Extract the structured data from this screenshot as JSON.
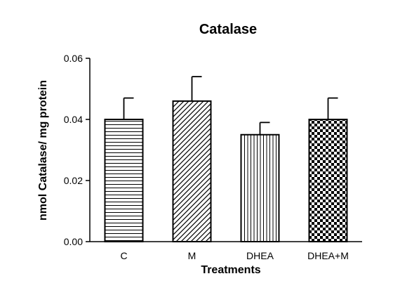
{
  "chart_data": {
    "type": "bar",
    "title": "Catalase",
    "xlabel": "Treatments",
    "ylabel": "nmol Catalase/ mg protein",
    "categories": [
      "C",
      "M",
      "DHEA",
      "DHEA+M"
    ],
    "values": [
      0.04,
      0.046,
      0.035,
      0.04
    ],
    "errors": [
      0.007,
      0.008,
      0.004,
      0.007
    ],
    "ylim": [
      0,
      0.06
    ],
    "yticks": [
      "0.00",
      "0.02",
      "0.04",
      "0.06"
    ],
    "patterns": [
      "horizontal-lines",
      "diagonal-lines",
      "vertical-lines",
      "checkerboard"
    ],
    "grid": false
  },
  "colors": {
    "ink": "#000000",
    "background": "#ffffff"
  }
}
